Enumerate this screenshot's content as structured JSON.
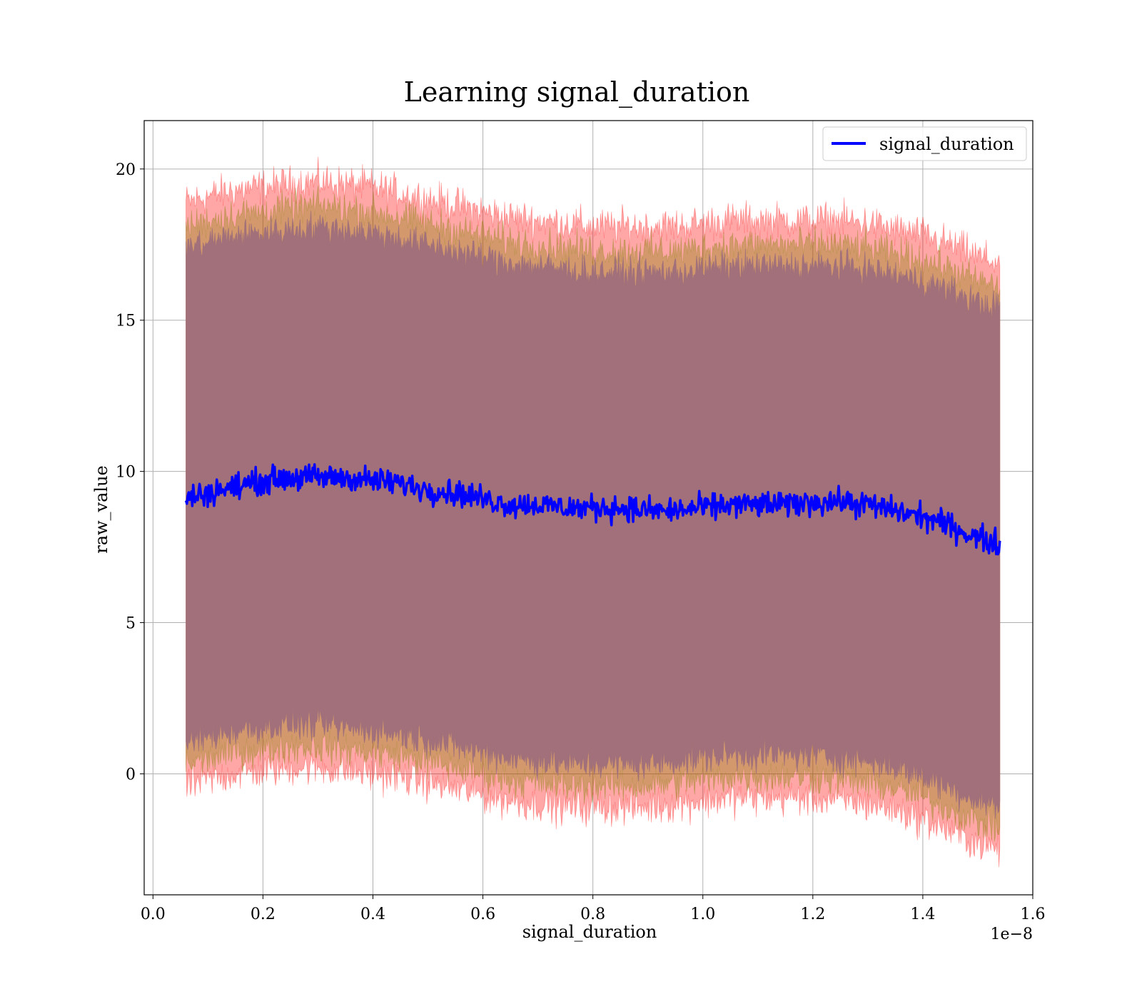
{
  "chart_data": {
    "type": "line",
    "title": "Learning signal_duration",
    "xlabel": "signal_duration",
    "ylabel": "raw_value",
    "x_offset_label": "1e−8",
    "x_tick_labels": [
      "0.0",
      "0.2",
      "0.4",
      "0.6",
      "0.8",
      "1.0",
      "1.2",
      "1.4",
      "1.6"
    ],
    "y_tick_labels": [
      "0",
      "5",
      "10",
      "15",
      "20"
    ],
    "xlim": [
      -0.016,
      1.6
    ],
    "ylim": [
      -4.0,
      21.6
    ],
    "grid": true,
    "legend_position": "top-right",
    "colors": {
      "mean_line": "#0000ff",
      "outer_band": "#ff0000",
      "mid_band": "#808000",
      "inner_band": "#800080",
      "inner_fill": "#a1707a"
    },
    "series": [
      {
        "name": "signal_duration",
        "x": [
          0.06,
          0.1,
          0.15,
          0.2,
          0.25,
          0.3,
          0.35,
          0.4,
          0.45,
          0.5,
          0.55,
          0.6,
          0.65,
          0.7,
          0.75,
          0.8,
          0.85,
          0.9,
          0.95,
          1.0,
          1.05,
          1.1,
          1.15,
          1.2,
          1.25,
          1.3,
          1.35,
          1.4,
          1.45,
          1.5,
          1.54
        ],
        "y": [
          9.1,
          9.3,
          9.5,
          9.7,
          9.8,
          9.8,
          9.8,
          9.7,
          9.6,
          9.4,
          9.3,
          9.1,
          8.9,
          8.9,
          8.8,
          8.8,
          8.8,
          8.7,
          8.7,
          8.8,
          8.9,
          8.9,
          8.9,
          9.0,
          9.0,
          8.9,
          8.7,
          8.5,
          8.2,
          7.8,
          7.6
        ]
      }
    ],
    "bands": {
      "outer_upper": [
        18.9,
        19.1,
        19.3,
        19.4,
        19.5,
        19.6,
        19.5,
        19.4,
        19.2,
        19.0,
        18.8,
        18.6,
        18.4,
        18.3,
        18.2,
        18.1,
        18.1,
        18.1,
        18.1,
        18.2,
        18.3,
        18.3,
        18.3,
        18.3,
        18.3,
        18.2,
        18.0,
        17.8,
        17.5,
        17.1,
        16.9
      ],
      "mid_upper": [
        18.1,
        18.3,
        18.5,
        18.6,
        18.7,
        18.8,
        18.7,
        18.6,
        18.4,
        18.2,
        18.0,
        17.8,
        17.6,
        17.5,
        17.4,
        17.3,
        17.3,
        17.3,
        17.3,
        17.4,
        17.5,
        17.5,
        17.5,
        17.5,
        17.5,
        17.4,
        17.2,
        17.0,
        16.7,
        16.3,
        16.1
      ],
      "inner_upper": [
        17.4,
        17.6,
        17.8,
        17.9,
        18.0,
        18.1,
        18.0,
        17.9,
        17.7,
        17.5,
        17.3,
        17.1,
        16.9,
        16.8,
        16.7,
        16.6,
        16.6,
        16.6,
        16.6,
        16.7,
        16.8,
        16.8,
        16.8,
        16.8,
        16.8,
        16.7,
        16.5,
        16.3,
        16.0,
        15.6,
        15.4
      ],
      "inner_lower": [
        1.0,
        1.2,
        1.4,
        1.5,
        1.6,
        1.6,
        1.5,
        1.4,
        1.3,
        1.1,
        0.9,
        0.7,
        0.5,
        0.4,
        0.3,
        0.3,
        0.3,
        0.3,
        0.4,
        0.5,
        0.6,
        0.6,
        0.6,
        0.6,
        0.5,
        0.4,
        0.2,
        -0.1,
        -0.5,
        -0.9,
        -1.1
      ],
      "mid_lower": [
        0.3,
        0.5,
        0.7,
        0.8,
        0.9,
        0.9,
        0.8,
        0.7,
        0.6,
        0.4,
        0.2,
        0.0,
        -0.2,
        -0.3,
        -0.4,
        -0.4,
        -0.4,
        -0.4,
        -0.3,
        -0.2,
        -0.1,
        -0.1,
        -0.1,
        -0.1,
        -0.2,
        -0.3,
        -0.5,
        -0.8,
        -1.2,
        -1.6,
        -1.8
      ],
      "outer_lower": [
        -0.4,
        -0.2,
        0.0,
        0.1,
        0.2,
        0.2,
        0.1,
        0.0,
        -0.1,
        -0.3,
        -0.5,
        -0.7,
        -0.9,
        -1.0,
        -1.1,
        -1.1,
        -1.1,
        -1.1,
        -1.0,
        -0.9,
        -0.8,
        -0.8,
        -0.8,
        -0.8,
        -0.9,
        -1.0,
        -1.2,
        -1.5,
        -1.9,
        -2.3,
        -2.5
      ]
    }
  }
}
